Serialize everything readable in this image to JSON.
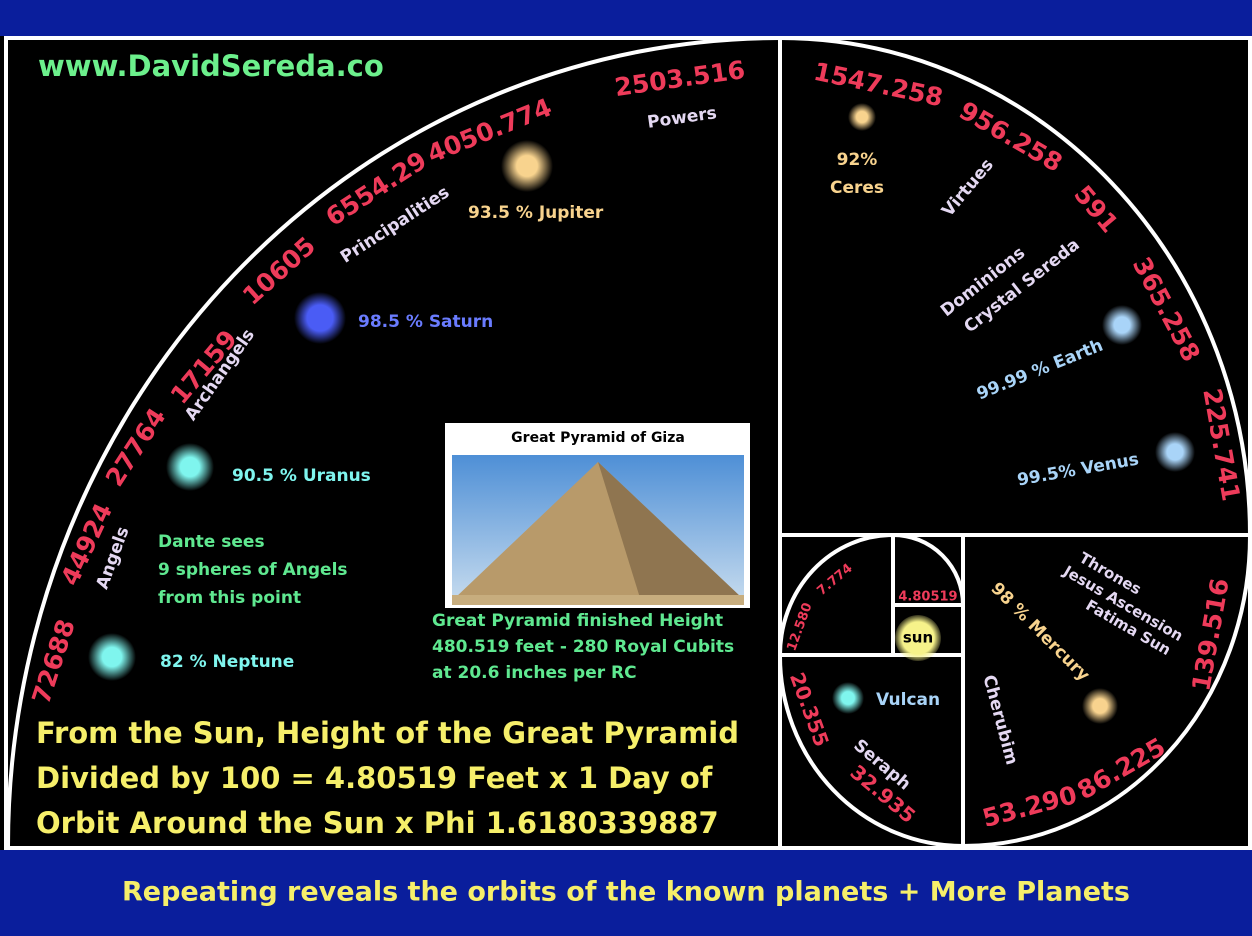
{
  "header": {
    "website": "www.DavidSereda.co"
  },
  "outer_arc": {
    "numbers": [
      "72688",
      "44924",
      "27764",
      "17159",
      "10605",
      "6554.29",
      "4050.774",
      "2503.516"
    ],
    "spheres": [
      "Angels",
      "Archangels",
      "Principalities",
      "Powers"
    ],
    "planets": [
      "82 % Neptune",
      "90.5 % Uranus",
      "98.5 % Saturn",
      "93.5 % Jupiter"
    ],
    "dante": [
      "Dante sees",
      "9 spheres of Angels",
      "from this point"
    ]
  },
  "pyramid": {
    "title": "Great Pyramid of Giza",
    "caption": [
      "Great Pyramid finished Height",
      "480.519 feet - 280 Royal Cubits",
      "at 20.6 inches per RC"
    ]
  },
  "main_text": [
    "From the Sun, Height of the Great Pyramid",
    "Divided by 100 = 4.80519 Feet x 1 Day of",
    "Orbit Around the Sun x Phi 1.6180339887"
  ],
  "upper_right": {
    "numbers": [
      "1547.258",
      "956.258",
      "591",
      "365.258",
      "225.741"
    ],
    "ceres": [
      "92%",
      "Ceres"
    ],
    "virtues": "Virtues",
    "dominions": [
      "Dominions",
      "Crystal Sereda"
    ],
    "earth": "99.99 % Earth",
    "venus": "99.5% Venus"
  },
  "lower_right": {
    "numbers": [
      "139.516",
      "86.225",
      "53.290"
    ],
    "thrones": [
      "Thrones",
      "Jesus Ascension",
      "Fatima Sun"
    ],
    "mercury": "98 % Mercury",
    "cherubim": "Cherubim"
  },
  "inner": {
    "numbers": [
      "7.774",
      "12.580",
      "4.80519",
      "20.355",
      "32.935"
    ],
    "sun": "sun",
    "vulcan": "Vulcan",
    "seraph": "Seraph"
  },
  "footer": "Repeating reveals the orbits of the known planets + More Planets"
}
